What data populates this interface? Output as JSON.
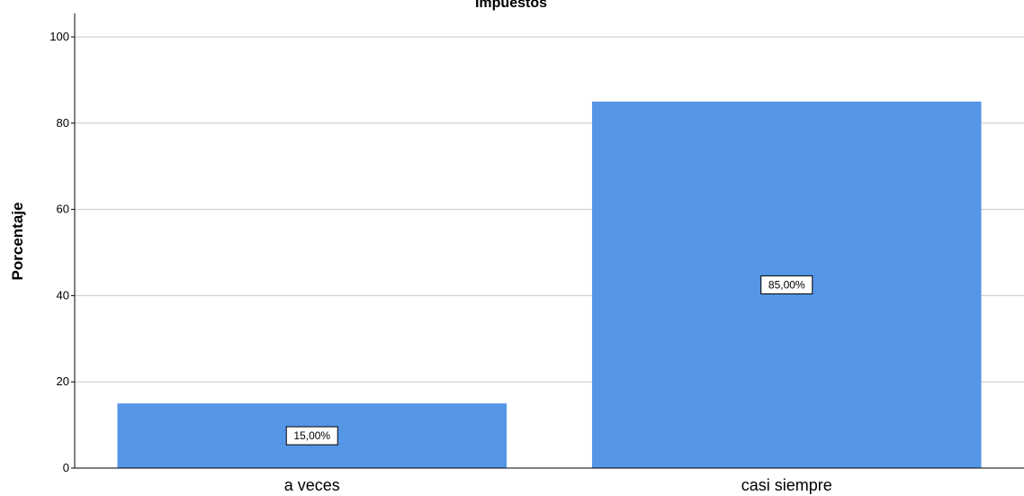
{
  "chart_data": {
    "type": "bar",
    "title": "Impuestos",
    "xlabel": "",
    "ylabel": "Porcentaje",
    "categories": [
      "a veces",
      "casi siempre"
    ],
    "values": [
      15,
      85
    ],
    "data_labels": [
      "15,00%",
      "85,00%"
    ],
    "ylim": [
      0,
      105
    ],
    "yticks": [
      0,
      20,
      40,
      60,
      80,
      100
    ],
    "grid": true,
    "bar_color": "#5596e6",
    "legend": "none"
  }
}
